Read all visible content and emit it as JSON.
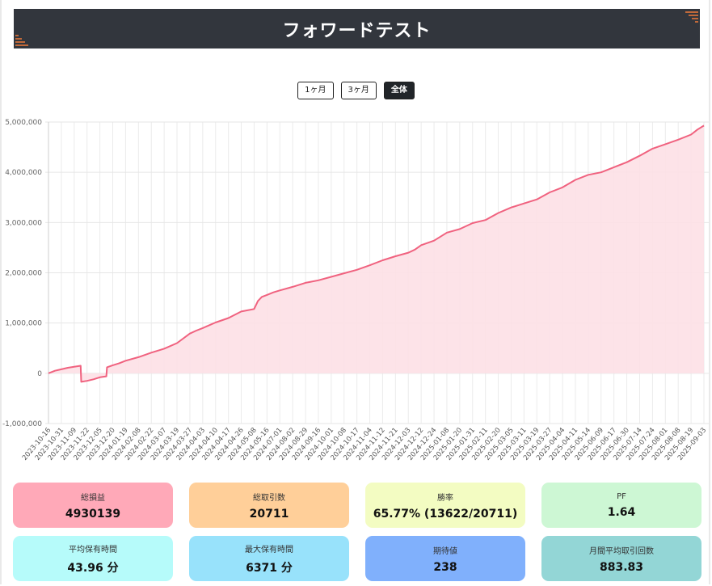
{
  "header": {
    "title": "フォワードテスト"
  },
  "range_buttons": [
    "1ヶ月",
    "3ヶ月",
    "全体"
  ],
  "active_range": "全体",
  "colors": {
    "line": "#f0627f",
    "fill": "#fde0e6",
    "header_bg": "#32363d",
    "accent": "#f07a3a"
  },
  "chart_data": {
    "type": "area",
    "ylim": [
      -1000000,
      5000000
    ],
    "yticks": [
      -1000000,
      0,
      1000000,
      2000000,
      3000000,
      4000000,
      5000000
    ],
    "ytick_labels": [
      "-1,000,000",
      "0",
      "1,000,000",
      "2,000,000",
      "3,000,000",
      "4,000,000",
      "5,000,000"
    ],
    "x_labels": [
      "2023-10-16",
      "2023-10-31",
      "2023-11-09",
      "2023-11-22",
      "2023-12-05",
      "2023-12-20",
      "2024-01-19",
      "2024-02-08",
      "2024-02-22",
      "2024-03-07",
      "2024-03-19",
      "2024-03-27",
      "2024-04-03",
      "2024-04-10",
      "2024-04-17",
      "2024-04-26",
      "2024-05-08",
      "2024-05-16",
      "2024-07-01",
      "2024-08-02",
      "2024-08-29",
      "2024-09-16",
      "2024-10-01",
      "2024-10-08",
      "2024-10-17",
      "2024-11-04",
      "2024-11-12",
      "2024-11-21",
      "2024-12-03",
      "2024-12-12",
      "2024-12-24",
      "2025-01-08",
      "2025-01-20",
      "2025-01-31",
      "2025-02-11",
      "2025-02-20",
      "2025-03-05",
      "2025-03-11",
      "2025-03-19",
      "2025-03-27",
      "2025-04-04",
      "2025-04-11",
      "2025-05-14",
      "2025-06-09",
      "2025-06-17",
      "2025-06-30",
      "2025-07-14",
      "2025-07-24",
      "2025-08-01",
      "2025-08-08",
      "2025-08-19",
      "2025-09-03"
    ],
    "series": [
      {
        "x": [
          0,
          0.5,
          1,
          1.5,
          2,
          2.5,
          2.55,
          3,
          3.5,
          4,
          4.5,
          4.55,
          5,
          5.5,
          6,
          7,
          8,
          9,
          10,
          11,
          11.5,
          12,
          13,
          14,
          15,
          16,
          16.3,
          16.6,
          17,
          17.5,
          18,
          19,
          20,
          21,
          22,
          23,
          24,
          25,
          26,
          27,
          28,
          28.5,
          29,
          30,
          31,
          32,
          33,
          34,
          34.5,
          35,
          36,
          37,
          38,
          39,
          40,
          41,
          42,
          43,
          44,
          45,
          46,
          47,
          48,
          49,
          50,
          50.5,
          51
        ],
        "y": [
          0,
          50000,
          80000,
          110000,
          130000,
          150000,
          -170000,
          -150000,
          -120000,
          -80000,
          -60000,
          120000,
          160000,
          200000,
          250000,
          320000,
          410000,
          490000,
          600000,
          790000,
          850000,
          900000,
          1010000,
          1100000,
          1230000,
          1280000,
          1440000,
          1520000,
          1560000,
          1610000,
          1650000,
          1720000,
          1800000,
          1850000,
          1920000,
          1990000,
          2060000,
          2150000,
          2250000,
          2330000,
          2400000,
          2460000,
          2550000,
          2640000,
          2800000,
          2870000,
          2990000,
          3050000,
          3120000,
          3190000,
          3300000,
          3380000,
          3460000,
          3600000,
          3700000,
          3850000,
          3950000,
          4000000,
          4100000,
          4200000,
          4330000,
          4470000,
          4560000,
          4650000,
          4750000,
          4850000,
          4930000
        ]
      }
    ]
  },
  "stats": [
    {
      "label": "総損益",
      "value": "4930139",
      "color": "#ffa9b8"
    },
    {
      "label": "総取引数",
      "value": "20711",
      "color": "#ffcf99"
    },
    {
      "label": "勝率",
      "value": "65.77% (13622/20711)",
      "color": "#f3fcc2"
    },
    {
      "label": "PF",
      "value": "1.64",
      "color": "#cdf7d4"
    },
    {
      "label": "平均保有時間",
      "value": "43.96 分",
      "color": "#b6fbfa"
    },
    {
      "label": "最大保有時間",
      "value": "6371 分",
      "color": "#98e2fb"
    },
    {
      "label": "期待値",
      "value": "238",
      "color": "#80b0fc"
    },
    {
      "label": "月間平均取引回数",
      "value": "883.83",
      "color": "#93d6d6"
    }
  ]
}
